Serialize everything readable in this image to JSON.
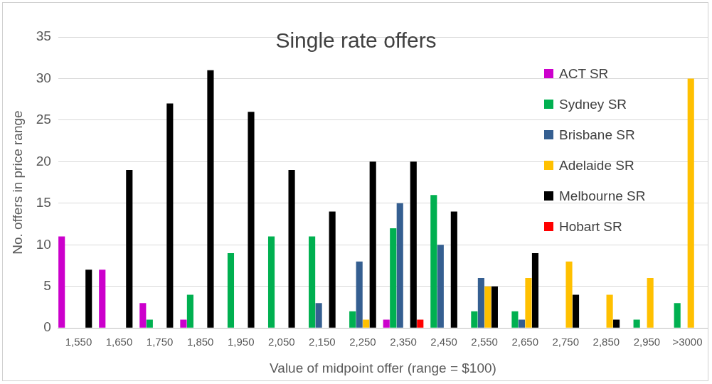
{
  "chart_data": {
    "type": "bar",
    "title": "Single rate offers",
    "xlabel": "Value of midpoint offer (range = $100)",
    "ylabel": "No. offers in price range",
    "categories": [
      "1,550",
      "1,650",
      "1,750",
      "1,850",
      "1,950",
      "2,050",
      "2,150",
      "2,250",
      "2,350",
      "2,450",
      "2,550",
      "2,650",
      "2,750",
      "2,850",
      "2,950",
      ">3000"
    ],
    "series": [
      {
        "name": "ACT SR",
        "color": "#cc00cc",
        "values": [
          11,
          7,
          3,
          1,
          null,
          null,
          null,
          null,
          1,
          null,
          null,
          null,
          null,
          null,
          null,
          null
        ]
      },
      {
        "name": "Sydney SR",
        "color": "#00b050",
        "values": [
          null,
          null,
          1,
          4,
          9,
          11,
          11,
          2,
          12,
          16,
          2,
          2,
          null,
          null,
          1,
          3
        ]
      },
      {
        "name": "Brisbane SR",
        "color": "#355f91",
        "values": [
          null,
          null,
          null,
          null,
          null,
          null,
          3,
          8,
          15,
          10,
          6,
          1,
          null,
          null,
          null,
          null
        ]
      },
      {
        "name": "Adelaide SR",
        "color": "#ffc000",
        "values": [
          null,
          null,
          null,
          null,
          null,
          null,
          null,
          1,
          null,
          null,
          5,
          6,
          8,
          4,
          6,
          30
        ]
      },
      {
        "name": "Melbourne SR",
        "color": "#000000",
        "values": [
          7,
          19,
          27,
          31,
          26,
          19,
          14,
          20,
          20,
          14,
          5,
          9,
          4,
          1,
          null,
          null
        ]
      },
      {
        "name": "Hobart SR",
        "color": "#ff0000",
        "values": [
          null,
          null,
          null,
          null,
          null,
          null,
          null,
          null,
          1,
          null,
          null,
          null,
          null,
          null,
          null,
          null
        ]
      }
    ],
    "ylim": [
      0,
      35
    ],
    "yticks": [
      0,
      5,
      10,
      15,
      20,
      25,
      30,
      35
    ],
    "grid": "y",
    "legend": "top right"
  }
}
